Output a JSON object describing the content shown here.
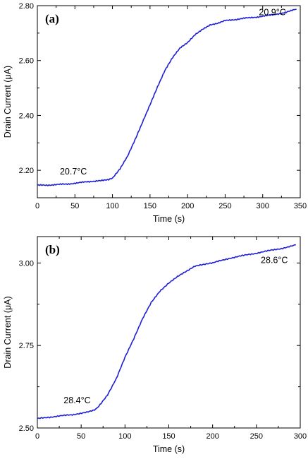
{
  "chart_data": [
    {
      "type": "line",
      "panel_label": "(a)",
      "xlabel": "Time (s)",
      "ylabel": "Drain Current (μA)",
      "xlim": [
        0,
        350
      ],
      "ylim": [
        2.1,
        2.8
      ],
      "x_ticks": [
        "0",
        "50",
        "100",
        "150",
        "200",
        "250",
        "300",
        "350"
      ],
      "y_ticks": [
        "2.20",
        "2.40",
        "2.60",
        "2.80"
      ],
      "grid": false,
      "color": "#1f1fd6",
      "series": [
        {
          "x": [
            0,
            20,
            40,
            60,
            80,
            95,
            100,
            110,
            120,
            130,
            140,
            150,
            160,
            170,
            180,
            190,
            200,
            210,
            220,
            230,
            240,
            250,
            270,
            290,
            310,
            330,
            345
          ],
          "values": [
            2.145,
            2.147,
            2.15,
            2.156,
            2.162,
            2.165,
            2.172,
            2.205,
            2.25,
            2.31,
            2.375,
            2.44,
            2.505,
            2.565,
            2.61,
            2.645,
            2.665,
            2.695,
            2.715,
            2.73,
            2.735,
            2.745,
            2.752,
            2.758,
            2.765,
            2.775,
            2.787
          ]
        }
      ],
      "annotations": [
        {
          "text": "20.7°C",
          "x": 30,
          "y": 2.185
        },
        {
          "text": "20.9°C",
          "x": 295,
          "y": 2.765
        }
      ]
    },
    {
      "type": "line",
      "panel_label": "(b)",
      "xlabel": "Time (s)",
      "ylabel": "Drain Current (μA)",
      "xlim": [
        0,
        300
      ],
      "ylim": [
        2.5,
        3.08
      ],
      "x_ticks": [
        "0",
        "50",
        "100",
        "150",
        "200",
        "250",
        "300"
      ],
      "y_ticks": [
        "2.50",
        "2.75",
        "3.00"
      ],
      "grid": false,
      "color": "#1f1fd6",
      "series": [
        {
          "x": [
            0,
            20,
            40,
            55,
            65,
            70,
            80,
            90,
            100,
            110,
            120,
            130,
            140,
            150,
            160,
            170,
            180,
            190,
            200,
            220,
            240,
            260,
            280,
            295
          ],
          "values": [
            2.528,
            2.535,
            2.54,
            2.548,
            2.555,
            2.565,
            2.6,
            2.65,
            2.715,
            2.77,
            2.83,
            2.88,
            2.915,
            2.94,
            2.96,
            2.975,
            2.99,
            2.995,
            3.0,
            3.015,
            3.025,
            3.035,
            3.045,
            3.055
          ]
        }
      ],
      "annotations": [
        {
          "text": "28.4°C",
          "x": 30,
          "y": 2.575
        },
        {
          "text": "28.6°C",
          "x": 255,
          "y": 3.0
        }
      ]
    }
  ]
}
